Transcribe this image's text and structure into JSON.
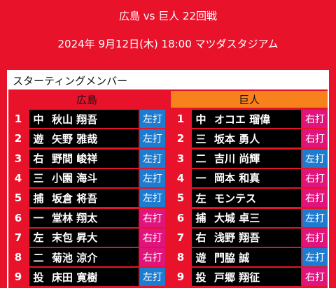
{
  "header": {
    "title": "広島 vs 巨人 22回戦",
    "subtitle": "2024年 9月12日(木) 18:00 マツダスタジアム"
  },
  "section_title": "スターティングメンバー",
  "teams": [
    {
      "name": "広島",
      "header_color": "#e8132b",
      "lineup": [
        {
          "order": 1,
          "position": "中",
          "player": "秋山 翔吾",
          "bats": "左打",
          "bats_color": "#1d7bd0"
        },
        {
          "order": 2,
          "position": "遊",
          "player": "矢野 雅哉",
          "bats": "左打",
          "bats_color": "#1d7bd0"
        },
        {
          "order": 3,
          "position": "右",
          "player": "野間 峻祥",
          "bats": "左打",
          "bats_color": "#1d7bd0"
        },
        {
          "order": 4,
          "position": "三",
          "player": "小園 海斗",
          "bats": "左打",
          "bats_color": "#1d7bd0"
        },
        {
          "order": 5,
          "position": "捕",
          "player": "坂倉 将吾",
          "bats": "左打",
          "bats_color": "#1d7bd0"
        },
        {
          "order": 6,
          "position": "一",
          "player": "堂林 翔太",
          "bats": "右打",
          "bats_color": "#e0147c"
        },
        {
          "order": 7,
          "position": "左",
          "player": "末包 昇大",
          "bats": "右打",
          "bats_color": "#e0147c"
        },
        {
          "order": 8,
          "position": "二",
          "player": "菊池 涼介",
          "bats": "右打",
          "bats_color": "#e0147c"
        },
        {
          "order": 9,
          "position": "投",
          "player": "床田 寛樹",
          "bats": "左打",
          "bats_color": "#1d7bd0"
        }
      ]
    },
    {
      "name": "巨人",
      "header_color": "#f7821b",
      "lineup": [
        {
          "order": 1,
          "position": "中",
          "player": "オコエ 瑠偉",
          "bats": "右打",
          "bats_color": "#e0147c"
        },
        {
          "order": 2,
          "position": "三",
          "player": "坂本 勇人",
          "bats": "右打",
          "bats_color": "#e0147c"
        },
        {
          "order": 3,
          "position": "二",
          "player": "吉川 尚輝",
          "bats": "左打",
          "bats_color": "#1d7bd0"
        },
        {
          "order": 4,
          "position": "一",
          "player": "岡本 和真",
          "bats": "右打",
          "bats_color": "#e0147c"
        },
        {
          "order": 5,
          "position": "左",
          "player": "モンテス",
          "bats": "右打",
          "bats_color": "#e0147c"
        },
        {
          "order": 6,
          "position": "捕",
          "player": "大城 卓三",
          "bats": "左打",
          "bats_color": "#1d7bd0"
        },
        {
          "order": 7,
          "position": "右",
          "player": "浅野 翔吾",
          "bats": "右打",
          "bats_color": "#e0147c"
        },
        {
          "order": 8,
          "position": "遊",
          "player": "門脇 誠",
          "bats": "左打",
          "bats_color": "#1d7bd0"
        },
        {
          "order": 9,
          "position": "投",
          "player": "戸郷 翔征",
          "bats": "右打",
          "bats_color": "#e0147c"
        }
      ]
    }
  ]
}
